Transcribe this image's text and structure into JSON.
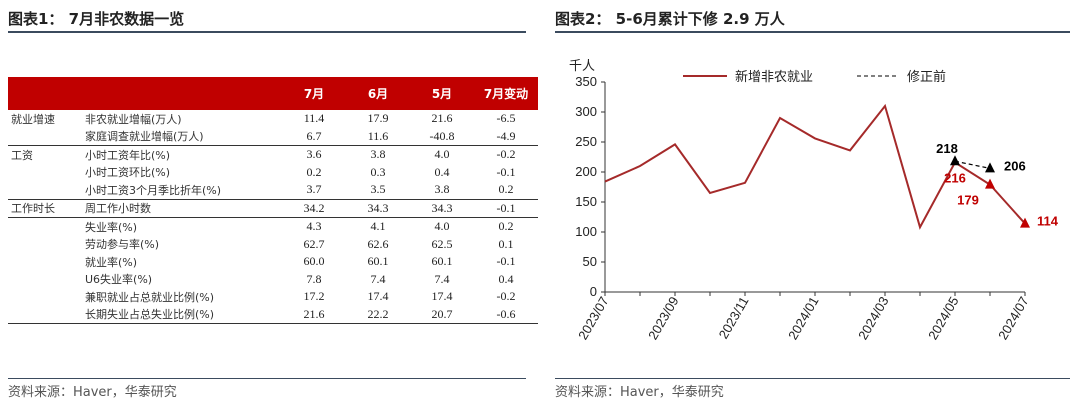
{
  "left_panel": {
    "title": "图表1：  7月非农数据一览",
    "source": "资料来源：Haver，华泰研究",
    "table": {
      "headers": [
        "",
        "",
        "7月",
        "6月",
        "5月",
        "7月变动"
      ],
      "groups": [
        {
          "name": "就业增速",
          "rows": [
            {
              "metric": "非农就业增幅(万人)",
              "values": [
                "11.4",
                "17.9",
                "21.6",
                "-6.5"
              ]
            },
            {
              "metric": "家庭调查就业增幅(万人)",
              "values": [
                "6.7",
                "11.6",
                "-40.8",
                "-4.9"
              ]
            }
          ]
        },
        {
          "name": "工资",
          "rows": [
            {
              "metric": "小时工资年比(%)",
              "values": [
                "3.6",
                "3.8",
                "4.0",
                "-0.2"
              ]
            },
            {
              "metric": "小时工资环比(%)",
              "values": [
                "0.2",
                "0.3",
                "0.4",
                "-0.1"
              ]
            },
            {
              "metric": "小时工资3个月季比折年(%)",
              "values": [
                "3.7",
                "3.5",
                "3.8",
                "0.2"
              ]
            }
          ]
        },
        {
          "name": "工作时长",
          "rows": [
            {
              "metric": "周工作小时数",
              "values": [
                "34.2",
                "34.3",
                "34.3",
                "-0.1"
              ]
            }
          ]
        },
        {
          "name": "",
          "rows": [
            {
              "metric": "失业率(%)",
              "values": [
                "4.3",
                "4.1",
                "4.0",
                "0.2"
              ]
            },
            {
              "metric": "劳动参与率(%)",
              "values": [
                "62.7",
                "62.6",
                "62.5",
                "0.1"
              ]
            },
            {
              "metric": "就业率(%)",
              "values": [
                "60.0",
                "60.1",
                "60.1",
                "-0.1"
              ]
            },
            {
              "metric": "U6失业率(%)",
              "values": [
                "7.8",
                "7.4",
                "7.4",
                "0.4"
              ]
            },
            {
              "metric": "兼职就业占总就业比例(%)",
              "values": [
                "17.2",
                "17.4",
                "17.4",
                "-0.2"
              ]
            },
            {
              "metric": "长期失业占总失业比例(%)",
              "values": [
                "21.6",
                "22.2",
                "20.7",
                "-0.6"
              ]
            }
          ]
        }
      ]
    }
  },
  "right_panel": {
    "title": "图表2：  5-6月累计下修 2.9 万人",
    "source": "资料来源：Haver，华泰研究"
  },
  "chart_data": {
    "type": "line",
    "title": "图表2：  5-6月累计下修 2.9 万人",
    "ylabel": "千人",
    "ylim": [
      0,
      350
    ],
    "yticks": [
      0,
      50,
      100,
      150,
      200,
      250,
      300,
      350
    ],
    "x": [
      "2023/07",
      "2023/08",
      "2023/09",
      "2023/10",
      "2023/11",
      "2023/12",
      "2024/01",
      "2024/02",
      "2024/03",
      "2024/04",
      "2024/05",
      "2024/06",
      "2024/07"
    ],
    "xtick_labels": [
      "2023/07",
      "2023/09",
      "2023/11",
      "2024/01",
      "2024/03",
      "2024/05",
      "2024/07"
    ],
    "legend_position": "top",
    "series": [
      {
        "name": "新增非农就业",
        "color": "#a52a2a",
        "values": [
          184,
          210,
          246,
          165,
          182,
          290,
          256,
          236,
          310,
          108,
          216,
          179,
          114
        ]
      },
      {
        "name": "修正前",
        "color": "#000000",
        "dashed": true,
        "values": [
          null,
          null,
          null,
          null,
          null,
          null,
          null,
          null,
          null,
          null,
          218,
          206,
          null
        ]
      }
    ],
    "annotations": [
      {
        "x": "2024/05",
        "text": "218",
        "color": "#000000"
      },
      {
        "x": "2024/06",
        "text": "206",
        "color": "#000000"
      },
      {
        "x": "2024/05",
        "text": "216",
        "color": "#c00000"
      },
      {
        "x": "2024/06",
        "text": "179",
        "color": "#c00000"
      },
      {
        "x": "2024/07",
        "text": "114",
        "color": "#c00000"
      }
    ]
  }
}
